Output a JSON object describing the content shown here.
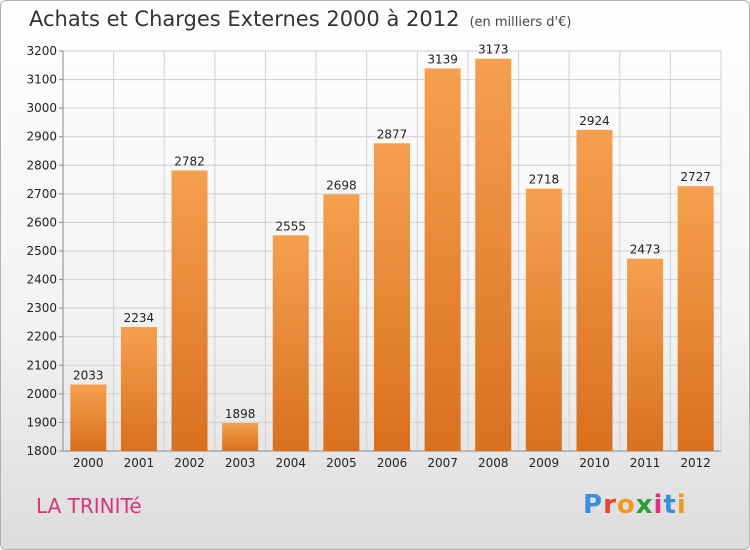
{
  "header": {
    "title": "Achats et Charges Externes 2000 à 2012",
    "unit": "(en milliers d'€)"
  },
  "footer": {
    "place": "LA TRINITé",
    "logo": "Proxiti",
    "logo_colors": [
      "#3a8fd9",
      "#e8442e",
      "#f39a1e",
      "#2e9b3a",
      "#e0317a",
      "#3a8fd9",
      "#f39a1e"
    ]
  },
  "colors": {
    "bar_light": "#f5a04f",
    "bar_dark": "#d9701e",
    "grid": "#d0d0d0",
    "place": "#e0317a"
  },
  "chart_data": {
    "type": "bar",
    "title": "Achats et Charges Externes 2000 à 2012",
    "subtitle": "(en milliers d'€)",
    "categories": [
      "2000",
      "2001",
      "2002",
      "2003",
      "2004",
      "2005",
      "2006",
      "2007",
      "2008",
      "2009",
      "2010",
      "2011",
      "2012"
    ],
    "values": [
      2033,
      2234,
      2782,
      1898,
      2555,
      2698,
      2877,
      3139,
      3173,
      2718,
      2924,
      2473,
      2727
    ],
    "ylim": [
      1800,
      3200
    ],
    "yticks": [
      1800,
      1900,
      2000,
      2100,
      2200,
      2300,
      2400,
      2500,
      2600,
      2700,
      2800,
      2900,
      3000,
      3100,
      3200
    ],
    "grid": true,
    "xlabel": "",
    "ylabel": ""
  }
}
